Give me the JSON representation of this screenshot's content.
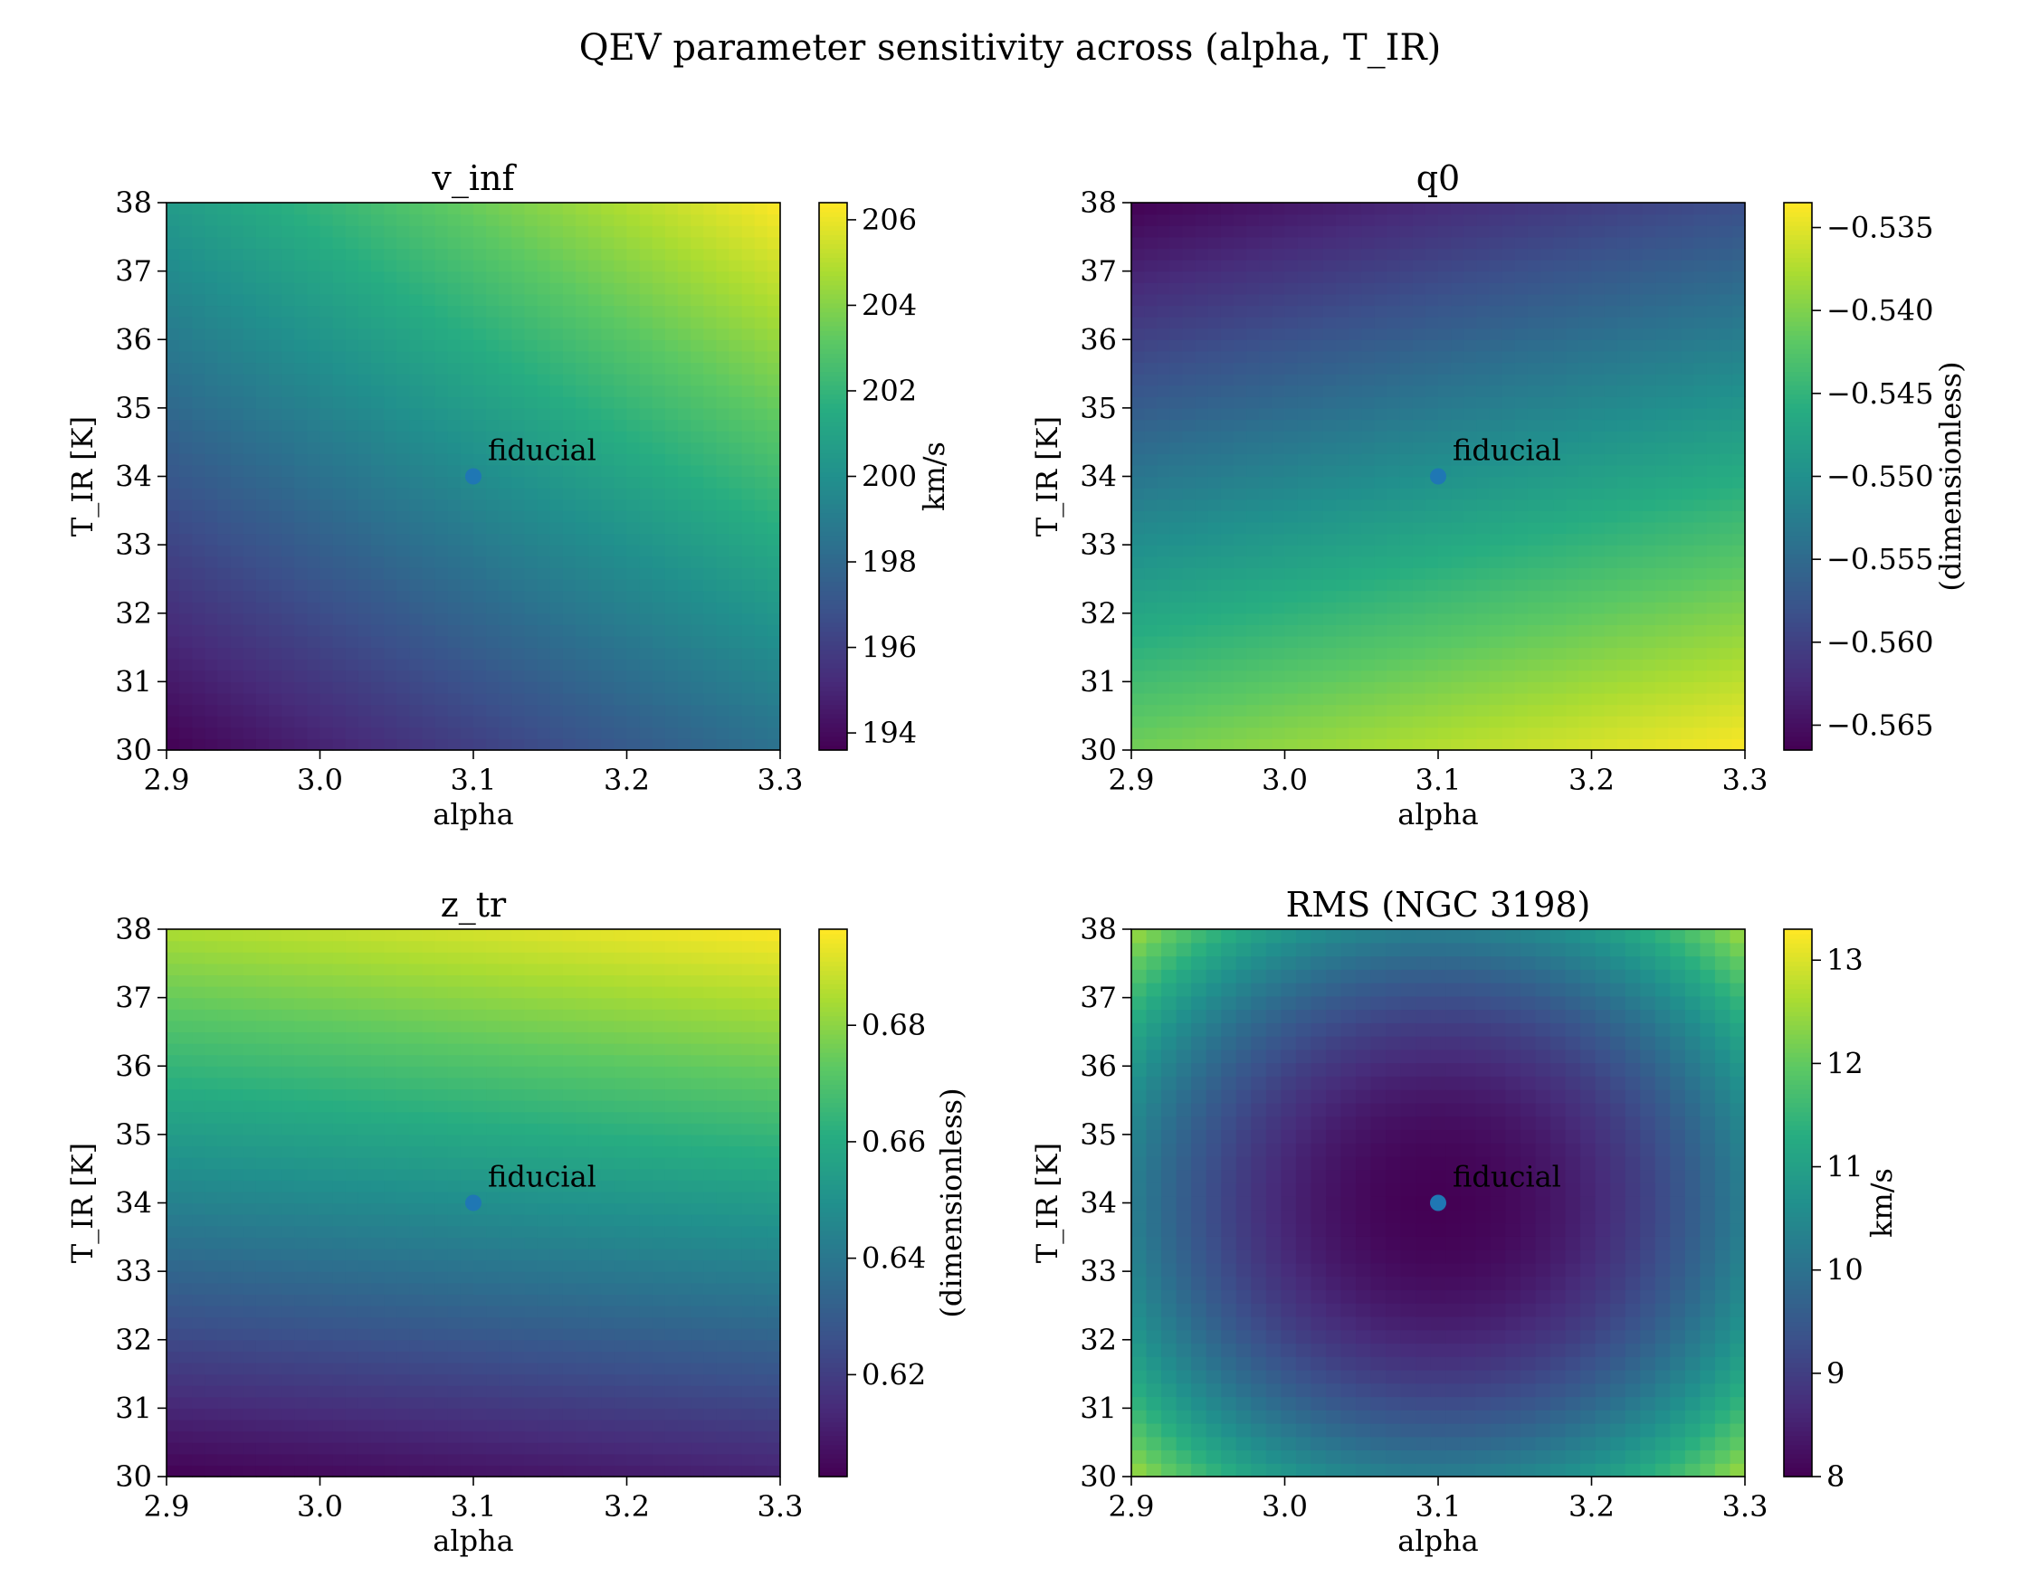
{
  "figure": {
    "suptitle": "QEV parameter sensitivity across (alpha, T_IR)"
  },
  "chart_data": [
    {
      "type": "heatmap",
      "title": "v_inf",
      "xlabel": "alpha",
      "ylabel": "T_IR [K]",
      "colorbar_label": "km/s",
      "colormap": "viridis",
      "xlim": [
        2.9,
        3.3
      ],
      "ylim": [
        30,
        38
      ],
      "x_ticks": [
        2.9,
        3.0,
        3.1,
        3.2,
        3.3
      ],
      "x_tick_labels": [
        "2.9",
        "3.0",
        "3.1",
        "3.2",
        "3.3"
      ],
      "y_ticks": [
        30,
        31,
        32,
        33,
        34,
        35,
        36,
        37,
        38
      ],
      "y_tick_labels": [
        "30",
        "31",
        "32",
        "33",
        "34",
        "35",
        "36",
        "37",
        "38"
      ],
      "color_range": [
        193.6,
        206.4
      ],
      "colorbar_ticks": [
        194,
        196,
        198,
        200,
        202,
        204,
        206
      ],
      "colorbar_tick_labels": [
        "194",
        "196",
        "198",
        "200",
        "202",
        "204",
        "206"
      ],
      "corner_values": {
        "alpha_min_T_min": 193.6,
        "alpha_max_T_min": 198.4,
        "alpha_min_T_max": 200.6,
        "alpha_max_T_max": 206.4
      },
      "fiducial": {
        "alpha": 3.1,
        "T_IR": 34,
        "label": "fiducial",
        "value": 199.5
      }
    },
    {
      "type": "heatmap",
      "title": "q0",
      "xlabel": "alpha",
      "ylabel": "T_IR [K]",
      "colorbar_label": "(dimensionless)",
      "colormap": "viridis",
      "xlim": [
        2.9,
        3.3
      ],
      "ylim": [
        30,
        38
      ],
      "x_ticks": [
        2.9,
        3.0,
        3.1,
        3.2,
        3.3
      ],
      "x_tick_labels": [
        "2.9",
        "3.0",
        "3.1",
        "3.2",
        "3.3"
      ],
      "y_ticks": [
        30,
        31,
        32,
        33,
        34,
        35,
        36,
        37,
        38
      ],
      "y_tick_labels": [
        "30",
        "31",
        "32",
        "33",
        "34",
        "35",
        "36",
        "37",
        "38"
      ],
      "color_range": [
        -0.5665,
        -0.5335
      ],
      "colorbar_ticks": [
        -0.565,
        -0.56,
        -0.555,
        -0.55,
        -0.545,
        -0.54,
        -0.535
      ],
      "colorbar_tick_labels": [
        "−0.565",
        "−0.560",
        "−0.555",
        "−0.550",
        "−0.545",
        "−0.540",
        "−0.535"
      ],
      "corner_values": {
        "alpha_min_T_min": -0.5405,
        "alpha_max_T_min": -0.5335,
        "alpha_min_T_max": -0.5665,
        "alpha_max_T_max": -0.5585
      },
      "fiducial": {
        "alpha": 3.1,
        "T_IR": 34,
        "label": "fiducial",
        "value": -0.55
      }
    },
    {
      "type": "heatmap",
      "title": "z_tr",
      "xlabel": "alpha",
      "ylabel": "T_IR [K]",
      "colorbar_label": "(dimensionless)",
      "colormap": "viridis",
      "xlim": [
        2.9,
        3.3
      ],
      "ylim": [
        30,
        38
      ],
      "x_ticks": [
        2.9,
        3.0,
        3.1,
        3.2,
        3.3
      ],
      "x_tick_labels": [
        "2.9",
        "3.0",
        "3.1",
        "3.2",
        "3.3"
      ],
      "y_ticks": [
        30,
        31,
        32,
        33,
        34,
        35,
        36,
        37,
        38
      ],
      "y_tick_labels": [
        "30",
        "31",
        "32",
        "33",
        "34",
        "35",
        "36",
        "37",
        "38"
      ],
      "color_range": [
        0.6025,
        0.6965
      ],
      "colorbar_ticks": [
        0.62,
        0.64,
        0.66,
        0.68
      ],
      "colorbar_tick_labels": [
        "0.62",
        "0.64",
        "0.66",
        "0.68"
      ],
      "corner_values": {
        "alpha_min_T_min": 0.6025,
        "alpha_max_T_min": 0.6115,
        "alpha_min_T_max": 0.685,
        "alpha_max_T_max": 0.6965
      },
      "fiducial": {
        "alpha": 3.1,
        "T_IR": 34,
        "label": "fiducial",
        "value": 0.648
      }
    },
    {
      "type": "heatmap",
      "title": "RMS (NGC 3198)",
      "xlabel": "alpha",
      "ylabel": "T_IR [K]",
      "colorbar_label": "km/s",
      "colormap": "viridis",
      "xlim": [
        2.9,
        3.3
      ],
      "ylim": [
        30,
        38
      ],
      "x_ticks": [
        2.9,
        3.0,
        3.1,
        3.2,
        3.3
      ],
      "x_tick_labels": [
        "2.9",
        "3.0",
        "3.1",
        "3.2",
        "3.3"
      ],
      "y_ticks": [
        30,
        31,
        32,
        33,
        34,
        35,
        36,
        37,
        38
      ],
      "y_tick_labels": [
        "30",
        "31",
        "32",
        "33",
        "34",
        "35",
        "36",
        "37",
        "38"
      ],
      "color_range": [
        8.0,
        13.3
      ],
      "colorbar_ticks": [
        8,
        9,
        10,
        11,
        12,
        13
      ],
      "colorbar_tick_labels": [
        "8",
        "9",
        "10",
        "11",
        "12",
        "13"
      ],
      "minimum": {
        "alpha": 3.1,
        "T_IR": 34,
        "value": 8.0
      },
      "edge_values": {
        "alpha_edge_at_T_fiducial": 10.3,
        "T_edge_at_alpha_fiducial": 10.3,
        "corners": 13.3
      },
      "grid": {
        "nx": 41,
        "ny": 41
      },
      "fiducial": {
        "alpha": 3.1,
        "T_IR": 34,
        "label": "fiducial",
        "value": 8.0
      }
    }
  ]
}
